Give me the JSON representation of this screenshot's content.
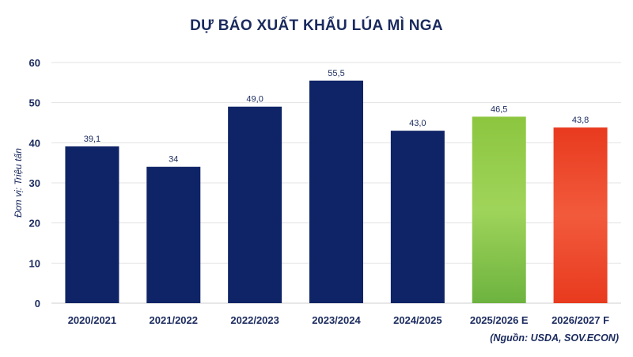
{
  "chart_data": {
    "type": "bar",
    "title": "DỰ BÁO XUẤT KHẨU LÚA MÌ NGA",
    "ylabel": "Đơn vị: Triệu tấn",
    "xlabel": "",
    "categories": [
      "2020/2021",
      "2021/2022",
      "2022/2023",
      "2023/2024",
      "2024/2025",
      "2025/2026 E",
      "2026/2027 F"
    ],
    "values": [
      39.1,
      34,
      49.0,
      55.5,
      43.0,
      46.5,
      43.8
    ],
    "value_labels": [
      "39,1",
      "34",
      "49,0",
      "55,5",
      "43,0",
      "46,5",
      "43,8"
    ],
    "bar_styles": [
      "navy",
      "navy",
      "navy",
      "navy",
      "navy",
      "green",
      "red"
    ],
    "yticks": [
      "0",
      "10",
      "20",
      "30",
      "40",
      "50",
      "60"
    ],
    "ylim": [
      0,
      60
    ],
    "grid": true,
    "legend": "none",
    "colors": {
      "navy": "#0f2466",
      "green_top": "#8cc63f",
      "green_bottom": "#6db33f",
      "red_top": "#f25a3c",
      "red_bottom": "#e83a1e",
      "text": "#1a2a5e",
      "grid": "#e3e3e3"
    }
  },
  "source": "(Nguồn: USDA, SOV.ECON)"
}
